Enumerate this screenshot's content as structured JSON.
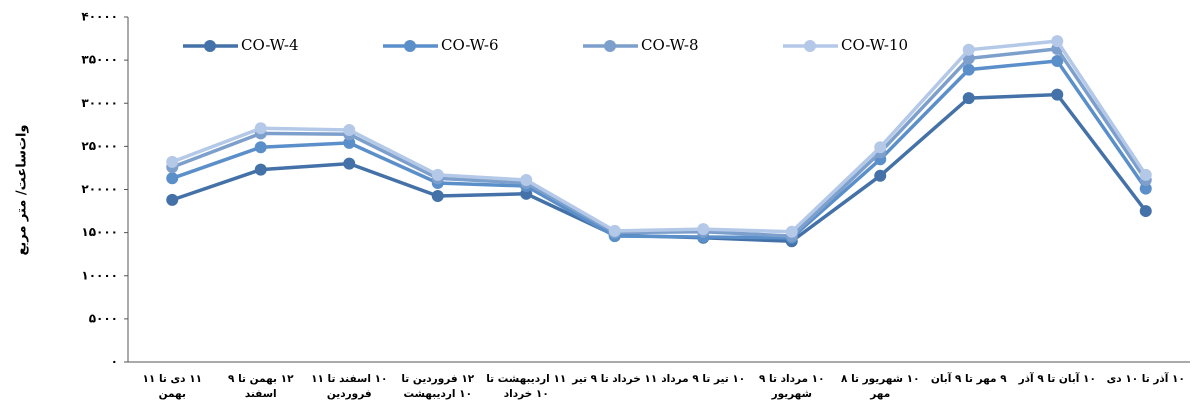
{
  "chart_data": {
    "type": "line",
    "y_label": "وات‌ساعت/ متر مربع",
    "categories": [
      "۱۱ دی تا ۱۱ بهمن",
      "۱۲ بهمن تا ۹ اسفند",
      "۱۰ اسفند تا ۱۱ فروردین",
      "۱۲ فروردین تا ۱۰ اردیبهشت",
      "۱۱ اردیبهشت تا ۱۰ خرداد",
      "۱۱ خرداد تا ۹ تیر",
      "۱۰ تیر تا ۹ مرداد",
      "۱۰ مرداد تا ۹ شهریور",
      "۱۰ شهریور تا ۸ مهر",
      "۹ مهر تا ۹ آبان",
      "۱۰ آبان تا ۹ آذر",
      "۱۰ آذر تا ۱۰ دی"
    ],
    "series": [
      {
        "name": "CO-W-4",
        "color": "#4472a8",
        "values": [
          18800,
          22300,
          23000,
          19250,
          19500,
          14700,
          14400,
          14000,
          21600,
          30600,
          31000,
          17500
        ]
      },
      {
        "name": "CO-W-6",
        "color": "#5b8fca",
        "values": [
          21300,
          24900,
          25400,
          20750,
          20400,
          14600,
          14500,
          14400,
          23500,
          33900,
          34900,
          20100
        ]
      },
      {
        "name": "CO-W-8",
        "color": "#7d9fcc",
        "values": [
          22600,
          26500,
          26400,
          21300,
          20750,
          15000,
          15100,
          14600,
          24300,
          35200,
          36300,
          21100
        ]
      },
      {
        "name": "CO-W-10",
        "color": "#b4c8e8",
        "values": [
          23200,
          27100,
          26900,
          21700,
          21100,
          15200,
          15400,
          15100,
          24900,
          36200,
          37200,
          21700
        ]
      }
    ],
    "ylim": [
      0,
      40000
    ],
    "yticks": [
      {
        "value": 0,
        "label": "۰"
      },
      {
        "value": 5000,
        "label": "۵۰۰۰"
      },
      {
        "value": 10000,
        "label": "۱۰۰۰۰"
      },
      {
        "value": 15000,
        "label": "۱۵۰۰۰"
      },
      {
        "value": 20000,
        "label": "۲۰۰۰۰"
      },
      {
        "value": 25000,
        "label": "۲۵۰۰۰"
      },
      {
        "value": 30000,
        "label": "۳۰۰۰۰"
      },
      {
        "value": 35000,
        "label": "۳۵۰۰۰"
      },
      {
        "value": 40000,
        "label": "۴۰۰۰۰"
      }
    ],
    "grid": false
  }
}
